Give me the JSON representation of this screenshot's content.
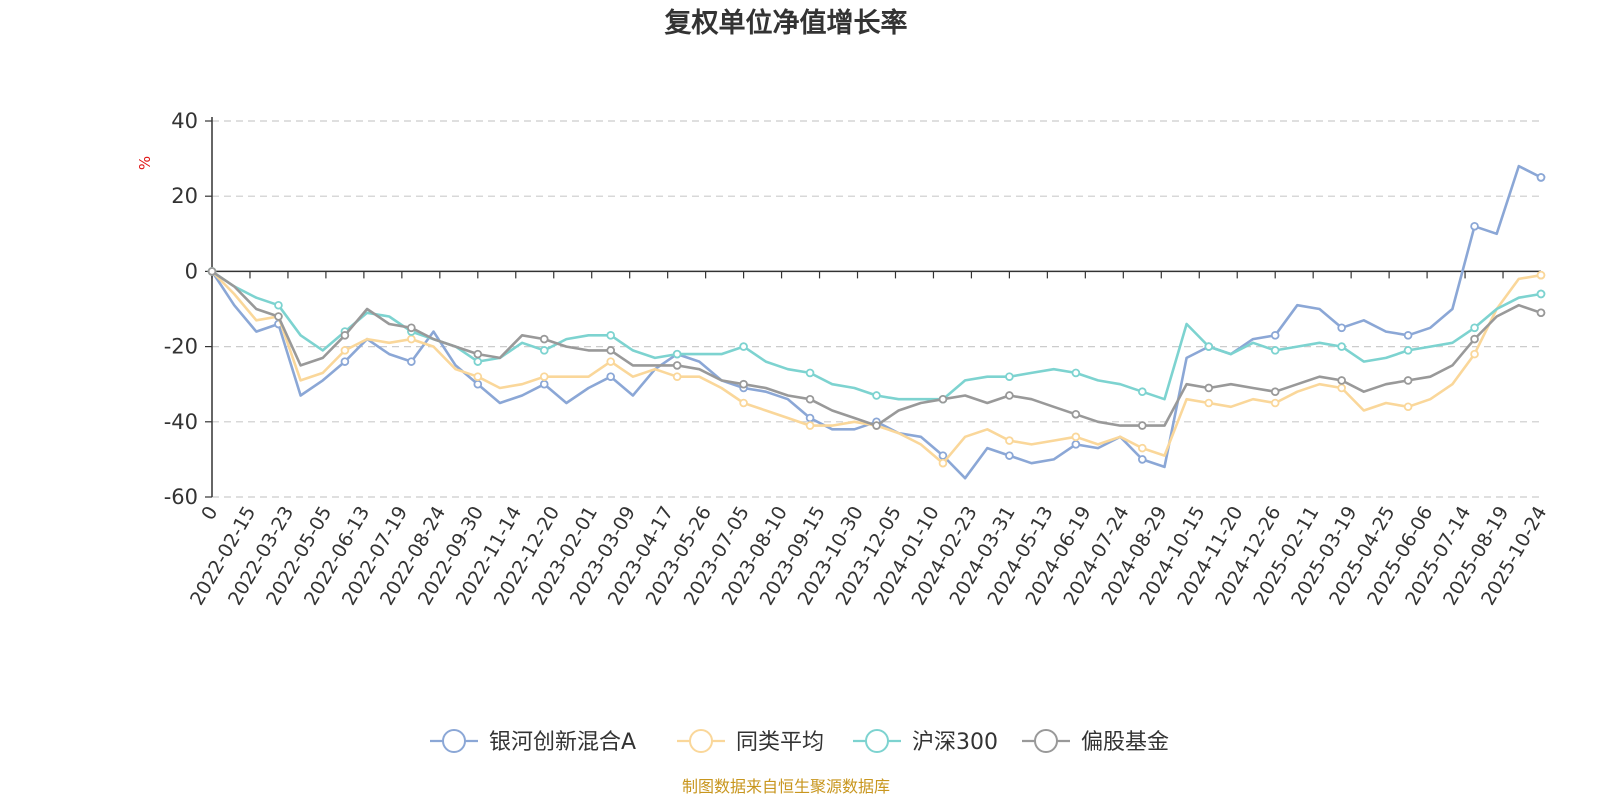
{
  "chart_data": {
    "type": "line",
    "title": "复权单位净值增长率",
    "ylabel": "%",
    "ylim": [
      -60,
      40
    ],
    "yticks": [
      "40",
      "20",
      "0",
      "-20",
      "-40",
      "-60"
    ],
    "xticklabels": [
      "0",
      "2022-02-15",
      "2022-03-23",
      "2022-05-05",
      "2022-06-13",
      "2022-07-19",
      "2022-08-24",
      "2022-09-30",
      "2022-11-14",
      "2022-12-20",
      "2023-02-01",
      "2023-03-09",
      "2023-04-17",
      "2023-05-26",
      "2023-07-05",
      "2023-08-10",
      "2023-09-15",
      "2023-10-30",
      "2023-12-05",
      "2024-01-10",
      "2024-02-23",
      "2024-03-31",
      "2024-05-13",
      "2024-06-19",
      "2024-07-24",
      "2024-08-29",
      "2024-10-15",
      "2024-11-20",
      "2024-12-26",
      "2025-02-11",
      "2025-03-19",
      "2025-04-25",
      "2025-06-06",
      "2025-07-14",
      "2025-08-19",
      "2025-10-24"
    ],
    "grid": true,
    "legend_position": "bottom",
    "series": [
      {
        "name": "银河创新混合A",
        "color": "#8ba7d6",
        "values": [
          0,
          -9,
          -16,
          -14,
          -33,
          -29,
          -24,
          -18,
          -22,
          -24,
          -16,
          -25,
          -30,
          -35,
          -33,
          -30,
          -35,
          -31,
          -28,
          -33,
          -26,
          -22,
          -24,
          -29,
          -31,
          -32,
          -34,
          -39,
          -42,
          -42,
          -40,
          -43,
          -44,
          -49,
          -55,
          -47,
          -49,
          -51,
          -50,
          -46,
          -47,
          -44,
          -50,
          -52,
          -23,
          -20,
          -22,
          -18,
          -17,
          -9,
          -10,
          -15,
          -13,
          -16,
          -17,
          -15,
          -10,
          12,
          10,
          28,
          25
        ]
      },
      {
        "name": "同类平均",
        "color": "#fad79a",
        "values": [
          0,
          -6,
          -13,
          -12,
          -29,
          -27,
          -21,
          -18,
          -19,
          -18,
          -20,
          -26,
          -28,
          -31,
          -30,
          -28,
          -28,
          -28,
          -24,
          -28,
          -26,
          -28,
          -28,
          -31,
          -35,
          -37,
          -39,
          -41,
          -41,
          -40,
          -41,
          -43,
          -46,
          -51,
          -44,
          -42,
          -45,
          -46,
          -45,
          -44,
          -46,
          -44,
          -47,
          -49,
          -34,
          -35,
          -36,
          -34,
          -35,
          -32,
          -30,
          -31,
          -37,
          -35,
          -36,
          -34,
          -30,
          -22,
          -10,
          -2,
          -1
        ]
      },
      {
        "name": "沪深300",
        "color": "#7dd3d0",
        "values": [
          0,
          -4,
          -7,
          -9,
          -17,
          -21,
          -16,
          -11,
          -12,
          -16,
          -18,
          -20,
          -24,
          -23,
          -19,
          -21,
          -18,
          -17,
          -17,
          -21,
          -23,
          -22,
          -22,
          -22,
          -20,
          -24,
          -26,
          -27,
          -30,
          -31,
          -33,
          -34,
          -34,
          -34,
          -29,
          -28,
          -28,
          -27,
          -26,
          -27,
          -29,
          -30,
          -32,
          -34,
          -14,
          -20,
          -22,
          -19,
          -21,
          -20,
          -19,
          -20,
          -24,
          -23,
          -21,
          -20,
          -19,
          -15,
          -10,
          -7,
          -6
        ]
      },
      {
        "name": "偏股基金",
        "color": "#999999",
        "values": [
          0,
          -4,
          -10,
          -12,
          -25,
          -23,
          -17,
          -10,
          -14,
          -15,
          -18,
          -20,
          -22,
          -23,
          -17,
          -18,
          -20,
          -21,
          -21,
          -25,
          -25,
          -25,
          -26,
          -29,
          -30,
          -31,
          -33,
          -34,
          -37,
          -39,
          -41,
          -37,
          -35,
          -34,
          -33,
          -35,
          -33,
          -34,
          -36,
          -38,
          -40,
          -41,
          -41,
          -41,
          -30,
          -31,
          -30,
          -31,
          -32,
          -30,
          -28,
          -29,
          -32,
          -30,
          -29,
          -28,
          -25,
          -18,
          -12,
          -9,
          -11
        ]
      }
    ]
  },
  "source_note": "制图数据来自恒生聚源数据库"
}
